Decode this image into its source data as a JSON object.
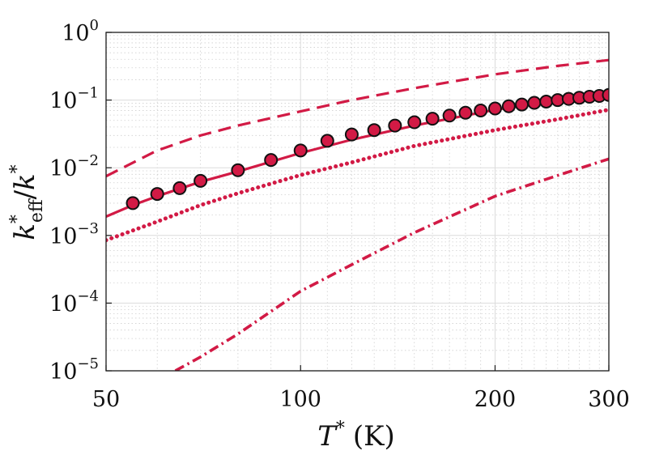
{
  "chart_data": {
    "type": "line",
    "xscale": "log",
    "yscale": "log",
    "xlim": [
      50,
      300
    ],
    "ylim": [
      1e-05,
      1
    ],
    "grid": "major and minor, both axes",
    "xticks": [
      {
        "value": 50,
        "label": "50"
      },
      {
        "value": 100,
        "label": "100"
      },
      {
        "value": 200,
        "label": "200"
      },
      {
        "value": 300,
        "label": "300"
      }
    ],
    "yticks": [
      {
        "value": 1,
        "base": "10",
        "exp": "0"
      },
      {
        "value": 0.1,
        "base": "10",
        "exp": "−1"
      },
      {
        "value": 0.01,
        "base": "10",
        "exp": "−2"
      },
      {
        "value": 0.001,
        "base": "10",
        "exp": "−3"
      },
      {
        "value": 0.0001,
        "base": "10",
        "exp": "−4"
      },
      {
        "value": 1e-05,
        "base": "10",
        "exp": "−5"
      }
    ],
    "xlabel": {
      "main": "T",
      "sup": "*",
      "unit": "(K)"
    },
    "ylabel": {
      "k1": "k",
      "sup1": "*",
      "sub1": "eff",
      "slash": "/",
      "k2": "k",
      "sup2": "*"
    },
    "colors": {
      "line": "#d21a45",
      "marker_fill": "#d21a45",
      "marker_edge": "#111111"
    },
    "series": [
      {
        "name": "dashed",
        "style": "dashed",
        "x": [
          50,
          60,
          70,
          80,
          100,
          120,
          150,
          200,
          250,
          300
        ],
        "y": [
          0.0075,
          0.018,
          0.03,
          0.042,
          0.068,
          0.1,
          0.15,
          0.24,
          0.32,
          0.39
        ]
      },
      {
        "name": "solid",
        "style": "solid",
        "x": [
          50,
          55,
          60,
          70,
          80,
          100,
          120,
          150,
          200,
          250,
          300
        ],
        "y": [
          0.0019,
          0.0028,
          0.0038,
          0.0062,
          0.0088,
          0.0165,
          0.026,
          0.042,
          0.072,
          0.098,
          0.12
        ]
      },
      {
        "name": "dotted",
        "style": "dotted",
        "x": [
          50,
          60,
          70,
          80,
          100,
          120,
          150,
          200,
          250,
          300
        ],
        "y": [
          0.00085,
          0.0016,
          0.0028,
          0.0042,
          0.0078,
          0.012,
          0.021,
          0.036,
          0.052,
          0.072
        ]
      },
      {
        "name": "dash-dot",
        "style": "dashdot",
        "x": [
          64,
          70,
          80,
          100,
          120,
          150,
          200,
          250,
          300
        ],
        "y": [
          1e-05,
          1.6e-05,
          3.5e-05,
          0.00015,
          0.00037,
          0.0011,
          0.0038,
          0.0077,
          0.0135
        ]
      },
      {
        "name": "markers",
        "style": "markers",
        "x": [
          55,
          60,
          65,
          70,
          80,
          90,
          100,
          110,
          120,
          130,
          140,
          150,
          160,
          170,
          180,
          190,
          200,
          210,
          220,
          230,
          240,
          250,
          260,
          270,
          280,
          290,
          300
        ],
        "y": [
          0.003,
          0.0041,
          0.005,
          0.0064,
          0.0092,
          0.013,
          0.018,
          0.025,
          0.031,
          0.036,
          0.042,
          0.047,
          0.053,
          0.059,
          0.065,
          0.07,
          0.075,
          0.081,
          0.086,
          0.091,
          0.095,
          0.1,
          0.104,
          0.108,
          0.112,
          0.115,
          0.119
        ]
      }
    ]
  }
}
